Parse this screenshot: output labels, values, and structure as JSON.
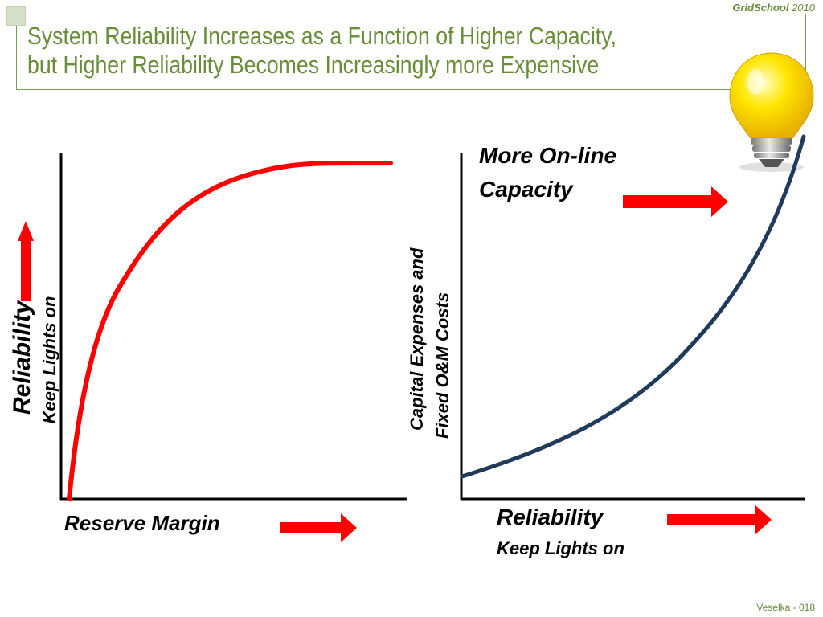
{
  "header": {
    "brand_bold": "GridSchool",
    "brand_year": "2010",
    "title_line1": "System Reliability Increases as a Function of Higher Capacity,",
    "title_line2": "but Higher Reliability Becomes Increasingly more Expensive"
  },
  "left_chart": {
    "y_label_main": "Reliability",
    "y_label_sub": "Keep Lights on",
    "x_label": "Reserve Margin",
    "curve_color": "#ff0000"
  },
  "right_chart": {
    "y_label_line1": "Capital Expenses and",
    "y_label_line2": "Fixed O&M Costs",
    "x_label_main": "Reliability",
    "x_label_sub": "Keep Lights on",
    "annotation_line1": "More On-line",
    "annotation_line2": "Capacity",
    "curve_color": "#1f3a5a"
  },
  "colors": {
    "accent_green": "#6a8d3a",
    "arrow_red": "#ff0000"
  },
  "icons": [
    "light-bulb-icon",
    "arrow-up-icon",
    "arrow-right-icon"
  ],
  "footer": {
    "slide_ref": "Veselka  - 018"
  }
}
